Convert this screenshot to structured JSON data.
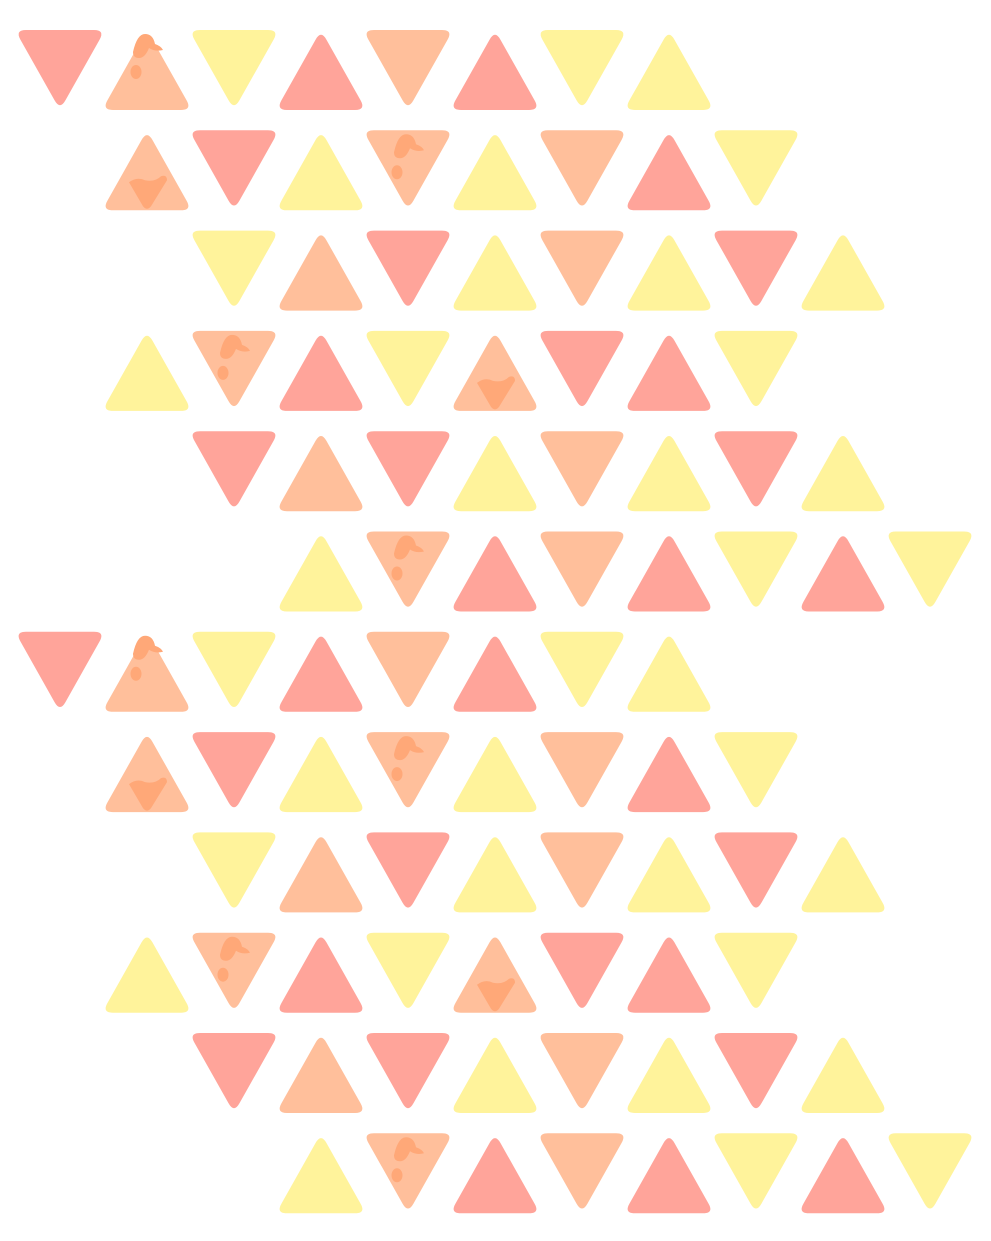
{
  "palette": {
    "r": "#FFA49A",
    "o": "#FFBF9B",
    "y": "#FFF39B",
    "drip": "#FFA878"
  },
  "pattern": {
    "rows": [
      {
        "start": 0,
        "tiles": [
          "r",
          "o",
          "y",
          "r",
          "o",
          "r",
          "y",
          "y"
        ]
      },
      {
        "start": 1,
        "tiles": [
          "o",
          "r",
          "y",
          "o",
          "y",
          "o",
          "r",
          "y"
        ]
      },
      {
        "start": 2,
        "tiles": [
          "y",
          "o",
          "r",
          "y",
          "o",
          "y",
          "r",
          "y"
        ]
      },
      {
        "start": 1,
        "tiles": [
          "y",
          "o",
          "r",
          "y",
          "o",
          "r",
          "r",
          "y"
        ]
      },
      {
        "start": 2,
        "tiles": [
          "r",
          "o",
          "r",
          "y",
          "o",
          "y",
          "r",
          "y"
        ]
      },
      {
        "start": 3,
        "tiles": [
          "y",
          "o",
          "r",
          "o",
          "r",
          "y",
          "r",
          "y"
        ]
      }
    ],
    "repeat": 2,
    "drips": [
      {
        "row": 0,
        "col": 1,
        "kind": "top"
      },
      {
        "row": 1,
        "col": 1,
        "kind": "bottom"
      },
      {
        "row": 1,
        "col": 4,
        "kind": "top"
      },
      {
        "row": 3,
        "col": 2,
        "kind": "top"
      },
      {
        "row": 3,
        "col": 5,
        "kind": "bottom"
      },
      {
        "row": 5,
        "col": 4,
        "kind": "top"
      }
    ]
  }
}
